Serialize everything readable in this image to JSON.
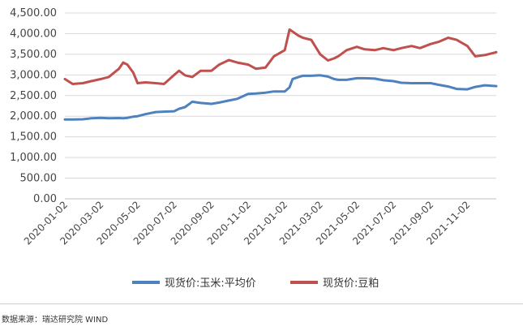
{
  "chart_data": {
    "type": "line",
    "title": "",
    "xlabel": "",
    "ylabel": "",
    "ylim": [
      0,
      4500
    ],
    "yticks": [
      "0.00",
      "500.00",
      "1,000.00",
      "1,500.00",
      "2,000.00",
      "2,500.00",
      "3,000.00",
      "3,500.00",
      "4,000.00",
      "4,500.00"
    ],
    "xticks": [
      "2020-01-02",
      "2020-03-02",
      "2020-05-02",
      "2020-07-02",
      "2020-09-02",
      "2020-11-02",
      "2021-01-02",
      "2021-03-02",
      "2021-05-02",
      "2021-07-02",
      "2021-09-02",
      "2021-11-02"
    ],
    "grid": true,
    "legend_position": "bottom",
    "x": [
      "2020-01-02",
      "2020-01-15",
      "2020-02-01",
      "2020-02-15",
      "2020-03-02",
      "2020-03-15",
      "2020-04-01",
      "2020-04-08",
      "2020-04-15",
      "2020-04-25",
      "2020-05-02",
      "2020-05-15",
      "2020-06-01",
      "2020-06-15",
      "2020-07-02",
      "2020-07-10",
      "2020-07-20",
      "2020-08-01",
      "2020-08-15",
      "2020-09-02",
      "2020-09-15",
      "2020-10-01",
      "2020-10-15",
      "2020-11-02",
      "2020-11-15",
      "2020-12-01",
      "2020-12-15",
      "2021-01-02",
      "2021-01-10",
      "2021-01-15",
      "2021-01-25",
      "2021-02-01",
      "2021-02-15",
      "2021-03-02",
      "2021-03-15",
      "2021-03-25",
      "2021-04-01",
      "2021-04-15",
      "2021-05-02",
      "2021-05-15",
      "2021-06-01",
      "2021-06-15",
      "2021-07-02",
      "2021-07-15",
      "2021-08-01",
      "2021-08-15",
      "2021-09-02",
      "2021-09-15",
      "2021-10-01",
      "2021-10-15",
      "2021-11-02",
      "2021-11-15",
      "2021-12-01",
      "2021-12-20"
    ],
    "series": [
      {
        "name": "现货价:玉米:平均价",
        "color": "#4f81bd",
        "values": [
          1920,
          1920,
          1925,
          1950,
          1960,
          1950,
          1955,
          1950,
          1960,
          1990,
          2000,
          2050,
          2100,
          2110,
          2120,
          2180,
          2220,
          2350,
          2320,
          2300,
          2330,
          2380,
          2420,
          2540,
          2550,
          2570,
          2600,
          2600,
          2700,
          2900,
          2950,
          2980,
          2980,
          2990,
          2960,
          2900,
          2880,
          2880,
          2920,
          2920,
          2910,
          2870,
          2850,
          2810,
          2800,
          2800,
          2800,
          2760,
          2720,
          2660,
          2650,
          2710,
          2750,
          2730
        ]
      },
      {
        "name": "现货价:豆粕",
        "color": "#c0504d",
        "values": [
          2900,
          2780,
          2800,
          2850,
          2900,
          2950,
          3150,
          3300,
          3250,
          3050,
          2800,
          2820,
          2800,
          2780,
          3000,
          3100,
          2990,
          2950,
          3100,
          3100,
          3250,
          3360,
          3300,
          3250,
          3150,
          3180,
          3450,
          3600,
          4100,
          4050,
          3950,
          3900,
          3850,
          3500,
          3350,
          3400,
          3450,
          3600,
          3680,
          3620,
          3600,
          3650,
          3600,
          3650,
          3700,
          3650,
          3750,
          3800,
          3900,
          3850,
          3700,
          3450,
          3480,
          3550
        ]
      }
    ]
  },
  "footer": {
    "source": "数据来源：瑞达研究院 WIND"
  }
}
